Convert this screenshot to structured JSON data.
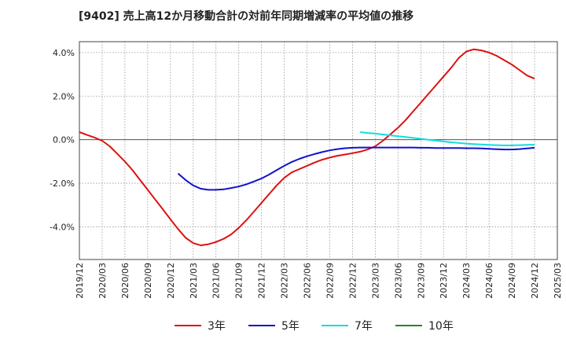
{
  "chart_data": {
    "type": "line",
    "title": "[9402]  売上高12か月移動合計の対前年同期増減率の平均値の推移",
    "xlabel": "",
    "ylabel": "",
    "ylim": [
      -5.5,
      4.5
    ],
    "grid": true,
    "legend_position": "bottom",
    "y_ticks": [
      4.0,
      2.0,
      0.0,
      -2.0,
      -4.0
    ],
    "y_tick_labels": [
      "4.0%",
      "2.0%",
      "0.0%",
      "-2.0%",
      "-4.0%"
    ],
    "x_tick_labels": [
      "2019/12",
      "2020/03",
      "2020/06",
      "2020/09",
      "2020/12",
      "2021/03",
      "2021/06",
      "2021/09",
      "2021/12",
      "2022/03",
      "2022/06",
      "2022/09",
      "2022/12",
      "2023/03",
      "2023/06",
      "2023/09",
      "2023/12",
      "2024/03",
      "2024/06",
      "2024/09",
      "2024/12",
      "2025/03"
    ],
    "series": [
      {
        "name": "3年",
        "color": "#dd1111",
        "x": [
          "2019/12",
          "2020/01",
          "2020/02",
          "2020/03",
          "2020/04",
          "2020/05",
          "2020/06",
          "2020/07",
          "2020/08",
          "2020/09",
          "2020/10",
          "2020/11",
          "2020/12",
          "2021/01",
          "2021/02",
          "2021/03",
          "2021/04",
          "2021/05",
          "2021/06",
          "2021/07",
          "2021/08",
          "2021/09",
          "2021/10",
          "2021/11",
          "2021/12",
          "2022/01",
          "2022/02",
          "2022/03",
          "2022/04",
          "2022/05",
          "2022/06",
          "2022/07",
          "2022/08",
          "2022/09",
          "2022/10",
          "2022/11",
          "2022/12",
          "2023/01",
          "2023/02",
          "2023/03",
          "2023/04",
          "2023/05",
          "2023/06",
          "2023/07",
          "2023/08",
          "2023/09",
          "2023/10",
          "2023/11",
          "2023/12",
          "2024/01",
          "2024/02",
          "2024/03",
          "2024/04",
          "2024/05",
          "2024/06",
          "2024/07",
          "2024/08",
          "2024/09",
          "2024/10",
          "2024/11",
          "2024/12"
        ],
        "values": [
          0.35,
          0.22,
          0.1,
          -0.05,
          -0.3,
          -0.65,
          -1.0,
          -1.4,
          -1.85,
          -2.3,
          -2.75,
          -3.2,
          -3.65,
          -4.1,
          -4.5,
          -4.75,
          -4.85,
          -4.8,
          -4.7,
          -4.55,
          -4.35,
          -4.05,
          -3.7,
          -3.3,
          -2.9,
          -2.5,
          -2.1,
          -1.75,
          -1.5,
          -1.35,
          -1.2,
          -1.05,
          -0.92,
          -0.82,
          -0.74,
          -0.68,
          -0.62,
          -0.55,
          -0.45,
          -0.3,
          -0.05,
          0.25,
          0.55,
          0.9,
          1.3,
          1.7,
          2.1,
          2.5,
          2.9,
          3.3,
          3.75,
          4.05,
          4.15,
          4.1,
          4.0,
          3.85,
          3.65,
          3.45,
          3.2,
          2.95,
          2.8
        ]
      },
      {
        "name": "5年",
        "color": "#1111cc",
        "x": [
          "2021/01",
          "2021/02",
          "2021/03",
          "2021/04",
          "2021/05",
          "2021/06",
          "2021/07",
          "2021/08",
          "2021/09",
          "2021/10",
          "2021/11",
          "2021/12",
          "2022/01",
          "2022/02",
          "2022/03",
          "2022/04",
          "2022/05",
          "2022/06",
          "2022/07",
          "2022/08",
          "2022/09",
          "2022/10",
          "2022/11",
          "2022/12",
          "2023/01",
          "2023/02",
          "2023/03",
          "2023/04",
          "2023/05",
          "2023/06",
          "2023/07",
          "2023/08",
          "2023/09",
          "2023/10",
          "2023/11",
          "2023/12",
          "2024/01",
          "2024/02",
          "2024/03",
          "2024/04",
          "2024/05",
          "2024/06",
          "2024/07",
          "2024/08",
          "2024/09",
          "2024/10",
          "2024/11",
          "2024/12"
        ],
        "values": [
          -1.55,
          -1.85,
          -2.1,
          -2.25,
          -2.3,
          -2.3,
          -2.28,
          -2.22,
          -2.15,
          -2.05,
          -1.92,
          -1.78,
          -1.6,
          -1.4,
          -1.2,
          -1.02,
          -0.88,
          -0.76,
          -0.66,
          -0.57,
          -0.49,
          -0.43,
          -0.39,
          -0.37,
          -0.36,
          -0.36,
          -0.36,
          -0.36,
          -0.36,
          -0.36,
          -0.36,
          -0.36,
          -0.37,
          -0.37,
          -0.38,
          -0.38,
          -0.38,
          -0.38,
          -0.39,
          -0.39,
          -0.4,
          -0.42,
          -0.44,
          -0.45,
          -0.45,
          -0.43,
          -0.4,
          -0.37
        ]
      },
      {
        "name": "7年",
        "color": "#11dddd",
        "x": [
          "2023/01",
          "2023/02",
          "2023/03",
          "2023/04",
          "2023/05",
          "2023/06",
          "2023/07",
          "2023/08",
          "2023/09",
          "2023/10",
          "2023/11",
          "2023/12",
          "2024/01",
          "2024/02",
          "2024/03",
          "2024/04",
          "2024/05",
          "2024/06",
          "2024/07",
          "2024/08",
          "2024/09",
          "2024/10",
          "2024/11",
          "2024/12"
        ],
        "values": [
          0.35,
          0.31,
          0.28,
          0.24,
          0.2,
          0.16,
          0.12,
          0.08,
          0.04,
          0.0,
          -0.04,
          -0.08,
          -0.12,
          -0.15,
          -0.18,
          -0.2,
          -0.22,
          -0.24,
          -0.25,
          -0.26,
          -0.26,
          -0.25,
          -0.24,
          -0.23
        ]
      },
      {
        "name": "10年",
        "color": "#228822",
        "x": [],
        "values": []
      }
    ]
  }
}
